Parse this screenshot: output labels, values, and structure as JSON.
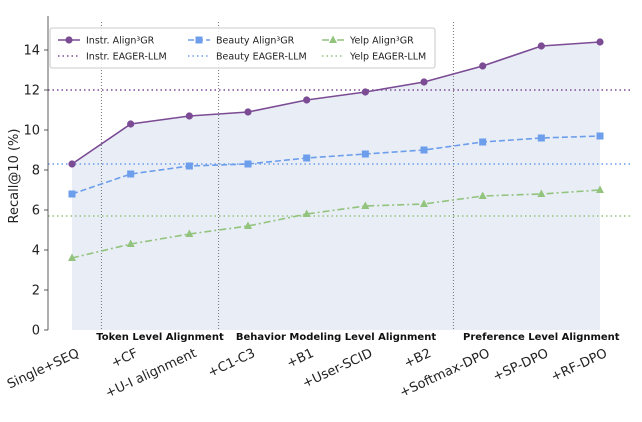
{
  "chart_data": {
    "type": "line",
    "title": "",
    "xlabel": "",
    "ylabel": "Recall@10 (%)",
    "ylim": [
      0,
      15.4
    ],
    "yticks": [
      0,
      2,
      4,
      6,
      8,
      10,
      12,
      14
    ],
    "categories": [
      "Single+SEQ",
      "+CF",
      "+U-I alignment",
      "+C1-C3",
      "+B1",
      "+User-SCID",
      "+B2",
      "+Softmax-DPO",
      "+SP-DPO",
      "+RF-DPO"
    ],
    "series": [
      {
        "name": "Instr. Align³GR",
        "values": [
          8.3,
          10.3,
          10.7,
          10.9,
          11.5,
          11.9,
          12.4,
          13.2,
          14.2,
          14.4
        ],
        "color": "#7b4b94",
        "marker": "circle",
        "dash": "solid"
      },
      {
        "name": "Beauty Align³GR",
        "values": [
          6.8,
          7.8,
          8.2,
          8.3,
          8.6,
          8.8,
          9.0,
          9.4,
          9.6,
          9.7
        ],
        "color": "#6d9eeb",
        "marker": "square",
        "dash": "dashed"
      },
      {
        "name": "Yelp Align³GR",
        "values": [
          3.6,
          4.3,
          4.8,
          5.2,
          5.8,
          6.2,
          6.3,
          6.7,
          6.8,
          7.0
        ],
        "color": "#93c47d",
        "marker": "triangle",
        "dash": "dashdot"
      }
    ],
    "baselines": [
      {
        "name": "Instr. EAGER-LLM",
        "value": 12.0,
        "color": "#7b4b94"
      },
      {
        "name": "Beauty EAGER-LLM",
        "value": 8.3,
        "color": "#6d9eeb"
      },
      {
        "name": "Yelp EAGER-LLM",
        "value": 5.7,
        "color": "#93c47d"
      }
    ],
    "sections": [
      {
        "label": "Token Level Alignment",
        "from": 0.5,
        "to": 2.5
      },
      {
        "label": "Behavior Modeling Level Alignment",
        "from": 2.5,
        "to": 6.5
      },
      {
        "label": "Preference Level Alignment",
        "from": 6.5,
        "to": 9.5
      }
    ],
    "fill_color": "#e8edf6",
    "grid": false,
    "legend_placement": "top-left"
  }
}
